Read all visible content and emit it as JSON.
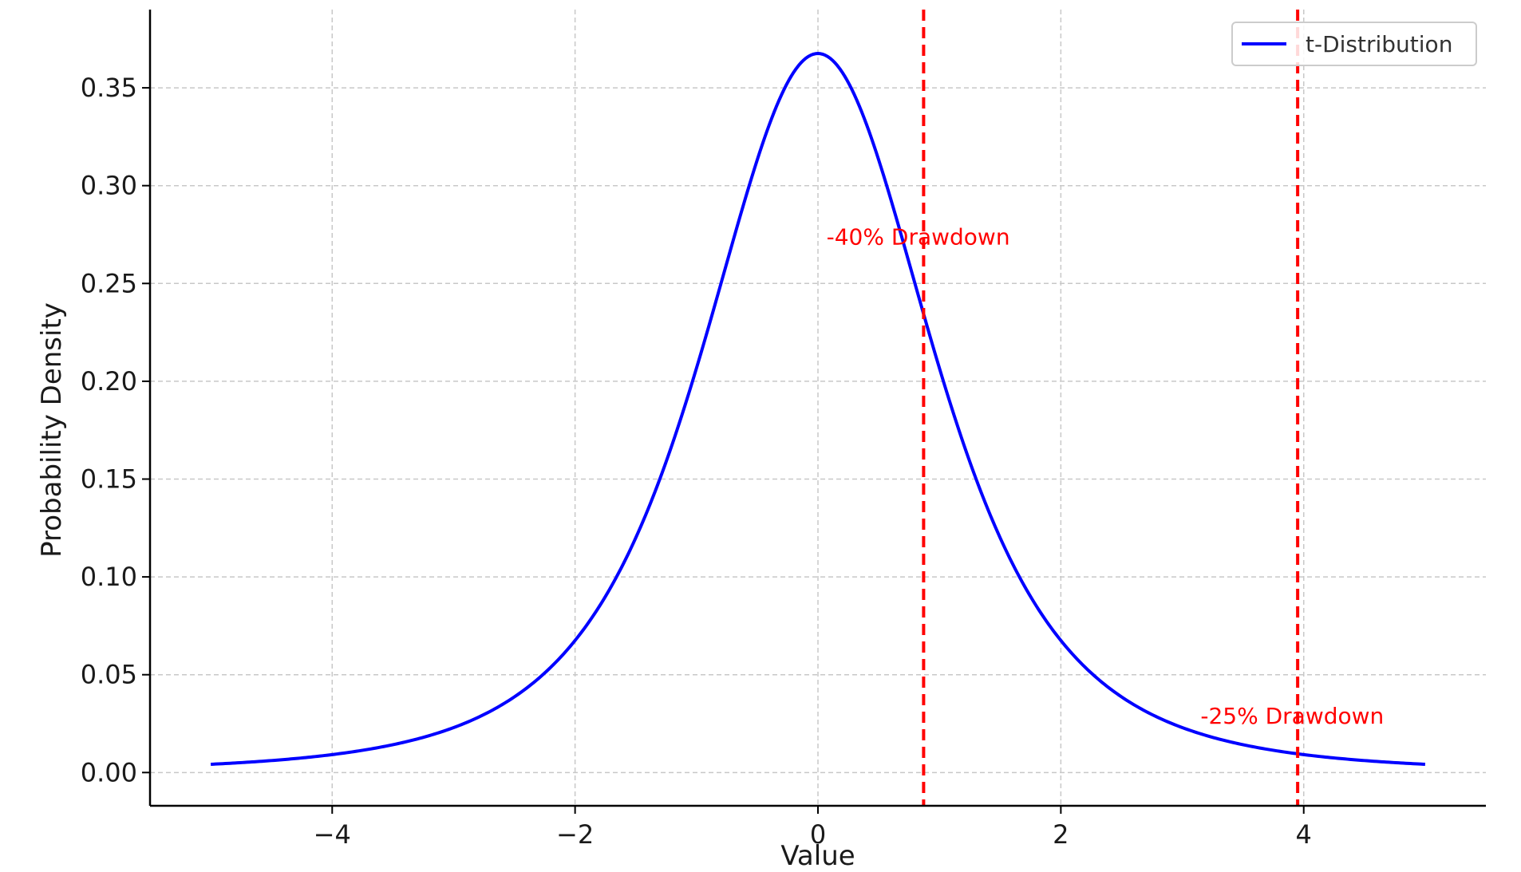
{
  "chart_data": {
    "type": "line",
    "title": "",
    "xlabel": "Value",
    "ylabel": "Probability Density",
    "xlim": [
      -5.5,
      5.5
    ],
    "ylim": [
      -0.017,
      0.39
    ],
    "x_ticks": [
      -4,
      -2,
      0,
      2,
      4
    ],
    "x_tick_labels": [
      "−4",
      "−2",
      "0",
      "2",
      "4"
    ],
    "y_ticks": [
      0.0,
      0.05,
      0.1,
      0.15,
      0.2,
      0.25,
      0.3,
      0.35
    ],
    "y_tick_labels": [
      "0.00",
      "0.05",
      "0.10",
      "0.15",
      "0.20",
      "0.25",
      "0.30",
      "0.35"
    ],
    "grid": true,
    "legend": {
      "position": "top-right",
      "entries": [
        "t-Distribution"
      ]
    },
    "series": [
      {
        "name": "t-Distribution",
        "color": "#0000ff",
        "x_range": [
          -5,
          5
        ],
        "x": [
          -5.0,
          -4.5,
          -4.0,
          -3.5,
          -3.0,
          -2.5,
          -2.0,
          -1.75,
          -1.5,
          -1.25,
          -1.0,
          -0.75,
          -0.5,
          -0.25,
          0.0,
          0.25,
          0.5,
          0.75,
          1.0,
          1.25,
          1.5,
          1.75,
          2.0,
          2.5,
          3.0,
          3.5,
          4.0,
          4.5,
          5.0
        ],
        "y": [
          0.0018,
          0.0027,
          0.0051,
          0.0099,
          0.022,
          0.0375,
          0.0663,
          0.0903,
          0.1205,
          0.1575,
          0.2,
          0.2514,
          0.3079,
          0.3559,
          0.3796,
          0.3559,
          0.3079,
          0.2514,
          0.2,
          0.1575,
          0.1205,
          0.0903,
          0.0663,
          0.0375,
          0.022,
          0.0099,
          0.0051,
          0.0027,
          0.0018
        ]
      }
    ],
    "vlines": [
      {
        "x": 0.87,
        "color": "#ff0000",
        "style": "dashed"
      },
      {
        "x": 3.95,
        "color": "#ff0000",
        "style": "dashed"
      }
    ],
    "annotations": [
      {
        "text": "-40% Drawdown",
        "x": 0.07,
        "y": 0.27,
        "color": "#ff0000"
      },
      {
        "text": "-25% Drawdown",
        "x": 3.15,
        "y": 0.025,
        "color": "#ff0000"
      }
    ]
  }
}
